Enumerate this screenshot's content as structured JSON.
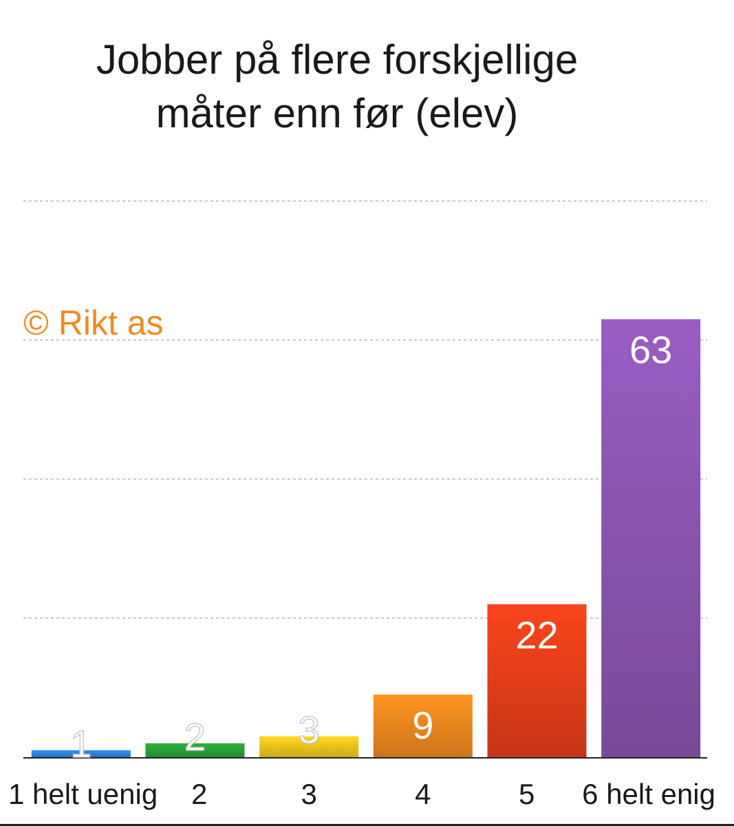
{
  "chart_data": {
    "type": "bar",
    "title": [
      "Jobber på flere forskjellige",
      "måter enn før (elev)"
    ],
    "categories": [
      "1 helt uenig",
      "2",
      "3",
      "4",
      "5",
      "6 helt enig"
    ],
    "values": [
      1,
      2,
      3,
      9,
      22,
      63
    ],
    "data_labels": [
      "1",
      "2",
      "3",
      "9",
      "22",
      "63"
    ],
    "colors": [
      "#2f86e0",
      "#2aa43a",
      "#f2c81c",
      "#f08a1e",
      "#e8401a",
      "#8e56b4"
    ],
    "ylim": [
      0,
      80
    ],
    "grid": true,
    "legend": "none"
  },
  "watermark": "© Rikt as"
}
